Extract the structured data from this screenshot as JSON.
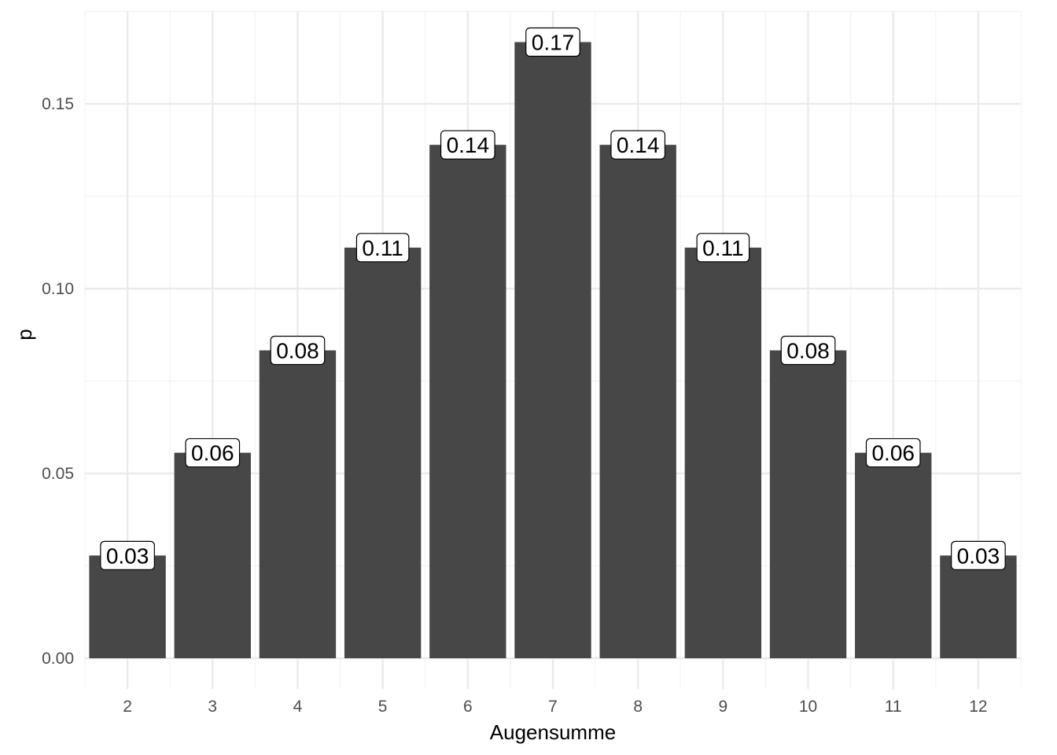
{
  "chart_data": {
    "type": "bar",
    "title": "",
    "xlabel": "Augensumme",
    "ylabel": "p",
    "categories": [
      "2",
      "3",
      "4",
      "5",
      "6",
      "7",
      "8",
      "9",
      "10",
      "11",
      "12"
    ],
    "values": [
      0.0278,
      0.0556,
      0.0833,
      0.1111,
      0.1389,
      0.1667,
      0.1389,
      0.1111,
      0.0833,
      0.0556,
      0.0278
    ],
    "data_labels": [
      "0.03",
      "0.06",
      "0.08",
      "0.11",
      "0.14",
      "0.17",
      "0.14",
      "0.11",
      "0.08",
      "0.06",
      "0.03"
    ],
    "ylim": [
      0,
      0.175
    ],
    "yticks": [
      0,
      0.05,
      0.1,
      0.15
    ],
    "ytick_labels": [
      "0.00",
      "0.05",
      "0.10",
      "0.15"
    ],
    "grid": true,
    "legend": "none",
    "colors": {
      "bar": "#474747",
      "grid_major": "#ebebeb",
      "grid_minor": "#f3f3f3",
      "label_bg": "#ffffff",
      "label_border": "#000000"
    }
  }
}
